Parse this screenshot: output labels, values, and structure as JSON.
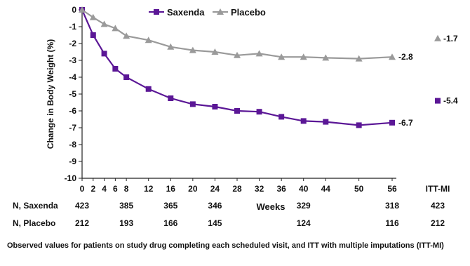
{
  "chart_data": {
    "type": "line",
    "ylabel": "Change in Body Weight (%)",
    "xlabel": "Weeks",
    "ylim": [
      -10,
      0
    ],
    "y_ticks": [
      0,
      -1,
      -2,
      -3,
      -4,
      -5,
      -6,
      -7,
      -8,
      -9,
      -10
    ],
    "x_ticks": [
      0,
      2,
      4,
      6,
      8,
      12,
      16,
      20,
      24,
      28,
      32,
      36,
      40,
      44,
      50,
      56
    ],
    "itt_label": "ITT-MI",
    "legend_position": "top",
    "grid": false,
    "series": [
      {
        "name": "Saxenda",
        "color": "#5b1796",
        "marker": "square",
        "x": [
          0,
          2,
          4,
          6,
          8,
          12,
          16,
          20,
          24,
          28,
          32,
          36,
          40,
          44,
          50,
          56
        ],
        "values": [
          0,
          -1.5,
          -2.6,
          -3.5,
          -4.0,
          -4.7,
          -5.25,
          -5.6,
          -5.75,
          -6.0,
          -6.05,
          -6.35,
          -6.6,
          -6.65,
          -6.85,
          -6.7
        ],
        "end_label": "-6.7",
        "itt_mi_value": -5.4,
        "itt_mi_label": "-5.4"
      },
      {
        "name": "Placebo",
        "color": "#9a9a9a",
        "marker": "triangle",
        "x": [
          0,
          2,
          4,
          6,
          8,
          12,
          16,
          20,
          24,
          28,
          32,
          36,
          40,
          44,
          50,
          56
        ],
        "values": [
          0,
          -0.45,
          -0.85,
          -1.1,
          -1.55,
          -1.8,
          -2.2,
          -2.4,
          -2.5,
          -2.7,
          -2.6,
          -2.8,
          -2.8,
          -2.85,
          -2.9,
          -2.8
        ],
        "end_label": "-2.8",
        "itt_mi_value": -1.7,
        "itt_mi_label": "-1.7"
      }
    ],
    "n_table": [
      {
        "label": "N, Saxenda",
        "cells": [
          {
            "week": 0,
            "value": "423"
          },
          {
            "week": 8,
            "value": "385"
          },
          {
            "week": 16,
            "value": "365"
          },
          {
            "week": 24,
            "value": "346"
          },
          {
            "week": 40,
            "value": "329"
          },
          {
            "week": 56,
            "value": "318"
          },
          {
            "week": "ITT-MI",
            "value": "423"
          }
        ]
      },
      {
        "label": "N, Placebo",
        "cells": [
          {
            "week": 0,
            "value": "212"
          },
          {
            "week": 8,
            "value": "193"
          },
          {
            "week": 16,
            "value": "166"
          },
          {
            "week": 24,
            "value": "145"
          },
          {
            "week": 40,
            "value": "124"
          },
          {
            "week": 56,
            "value": "116"
          },
          {
            "week": "ITT-MI",
            "value": "212"
          }
        ]
      }
    ]
  },
  "footnote": "Observed values for patients on study drug completing each scheduled visit, and ITT with multiple imputations (ITT-MI)"
}
